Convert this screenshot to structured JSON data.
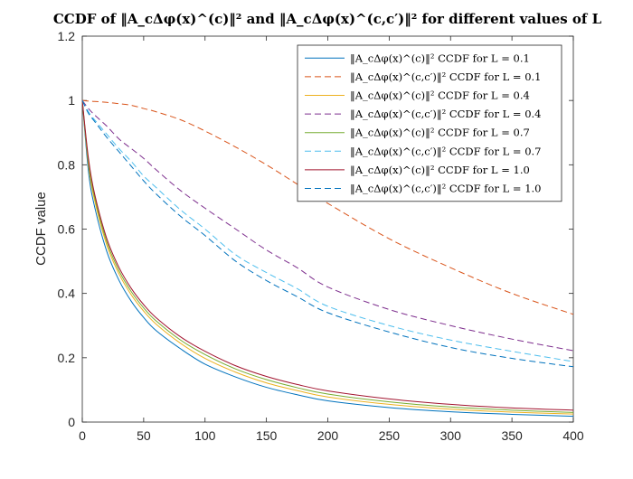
{
  "chart_data": {
    "type": "line",
    "title": "CCDF of ‖A_cΔφ(x)^(c)‖² and ‖A_cΔφ(x)^(c,c′)‖² for different values of L",
    "xlabel": "",
    "ylabel": "CCDF value",
    "xlim": [
      0,
      400
    ],
    "ylim": [
      0,
      1.2
    ],
    "xticks": [
      0,
      50,
      100,
      150,
      200,
      250,
      300,
      350,
      400
    ],
    "xtick_labels": [
      "0",
      "50",
      "100",
      "150",
      "200",
      "250",
      "300",
      "350",
      "400"
    ],
    "yticks": [
      0,
      0.2,
      0.4,
      0.6,
      0.8,
      1.0,
      1.2
    ],
    "ytick_labels": [
      "0",
      "0.2",
      "0.4",
      "0.6",
      "0.8",
      "1",
      "1.2"
    ],
    "grid": false,
    "legend_position": "top-right",
    "x": [
      0,
      5,
      10,
      20,
      30,
      40,
      50,
      60,
      80,
      100,
      125,
      150,
      175,
      200,
      250,
      300,
      350,
      400
    ],
    "series": [
      {
        "name": "‖A_cΔφ(x)^(c)‖² CCDF for L = 0.1",
        "color": "#0072bd",
        "dash": "solid",
        "values": [
          1.0,
          0.78,
          0.67,
          0.53,
          0.44,
          0.375,
          0.325,
          0.285,
          0.228,
          0.18,
          0.14,
          0.108,
          0.085,
          0.066,
          0.045,
          0.032,
          0.024,
          0.018
        ]
      },
      {
        "name": "‖A_cΔφ(x)^(c,c′)‖² CCDF for L = 0.1",
        "color": "#d95319",
        "dash": "dashed",
        "values": [
          1.0,
          0.998,
          0.997,
          0.994,
          0.99,
          0.985,
          0.975,
          0.965,
          0.94,
          0.905,
          0.855,
          0.8,
          0.74,
          0.68,
          0.57,
          0.48,
          0.4,
          0.335
        ]
      },
      {
        "name": "‖A_cΔφ(x)^(c)‖² CCDF for L = 0.4",
        "color": "#edb120",
        "dash": "solid",
        "values": [
          1.0,
          0.8,
          0.69,
          0.55,
          0.46,
          0.395,
          0.345,
          0.305,
          0.245,
          0.198,
          0.155,
          0.122,
          0.098,
          0.078,
          0.055,
          0.04,
          0.031,
          0.025
        ]
      },
      {
        "name": "‖A_cΔφ(x)^(c,c′)‖² CCDF for L = 0.4",
        "color": "#7e2f8e",
        "dash": "dashed",
        "values": [
          1.0,
          0.975,
          0.955,
          0.92,
          0.88,
          0.85,
          0.82,
          0.785,
          0.72,
          0.665,
          0.6,
          0.535,
          0.48,
          0.42,
          0.35,
          0.3,
          0.258,
          0.222
        ]
      },
      {
        "name": "‖A_cΔφ(x)^(c)‖² CCDF for L = 0.7",
        "color": "#77ac30",
        "dash": "solid",
        "values": [
          1.0,
          0.81,
          0.7,
          0.56,
          0.47,
          0.405,
          0.355,
          0.315,
          0.255,
          0.21,
          0.165,
          0.132,
          0.107,
          0.087,
          0.063,
          0.047,
          0.037,
          0.03
        ]
      },
      {
        "name": "‖A_cΔφ(x)^(c,c′)‖² CCDF for L = 0.7",
        "color": "#4dbeee",
        "dash": "dashed",
        "values": [
          1.0,
          0.965,
          0.94,
          0.895,
          0.85,
          0.81,
          0.765,
          0.73,
          0.66,
          0.6,
          0.52,
          0.465,
          0.415,
          0.36,
          0.3,
          0.255,
          0.22,
          0.188
        ]
      },
      {
        "name": "‖A_cΔφ(x)^(c)‖² CCDF for L = 1.0",
        "color": "#a2142f",
        "dash": "solid",
        "values": [
          1.0,
          0.82,
          0.71,
          0.57,
          0.48,
          0.415,
          0.365,
          0.325,
          0.265,
          0.22,
          0.175,
          0.142,
          0.117,
          0.097,
          0.072,
          0.055,
          0.044,
          0.037
        ]
      },
      {
        "name": "‖A_cΔφ(x)^(c,c′)‖² CCDF for L = 1.0",
        "color": "#0072bd",
        "dash": "dashed",
        "values": [
          1.0,
          0.96,
          0.935,
          0.885,
          0.84,
          0.795,
          0.75,
          0.71,
          0.64,
          0.58,
          0.5,
          0.44,
          0.39,
          0.34,
          0.28,
          0.232,
          0.198,
          0.172
        ]
      }
    ]
  }
}
